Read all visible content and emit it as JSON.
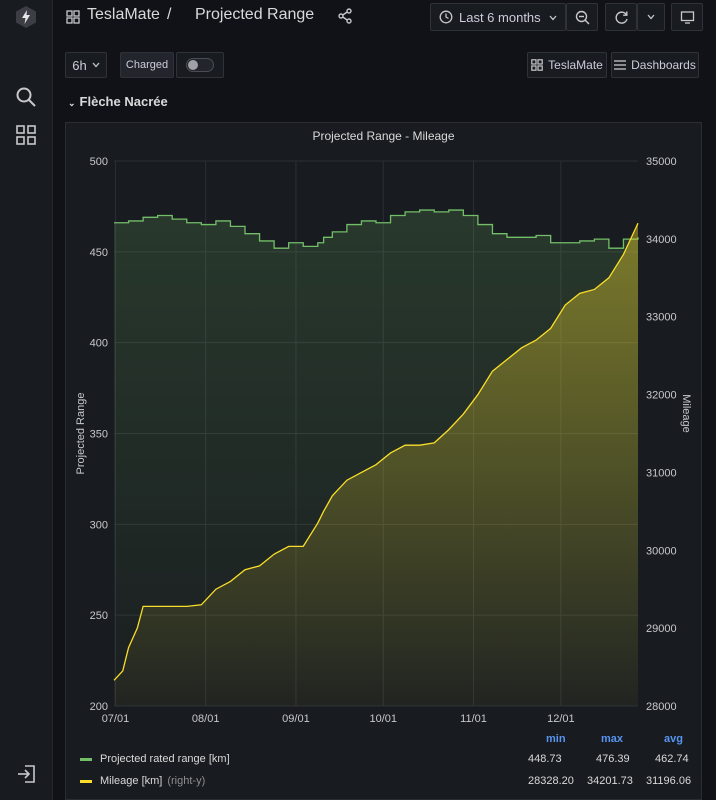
{
  "header": {
    "home": "TeslaMate",
    "separator": "/",
    "title": "Projected Range",
    "time_range": "Last 6 months"
  },
  "toolbar": {
    "interval": "6h",
    "charged_label": "Charged",
    "teslamate_link": "TeslaMate",
    "dashboards_link": "Dashboards"
  },
  "row": {
    "title": "Flèche Nacrée"
  },
  "panel": {
    "title": "Projected Range - Mileage"
  },
  "legend": {
    "col_min": "min",
    "col_max": "max",
    "col_avg": "avg",
    "items": [
      {
        "name": "Projected rated range [km]",
        "suffix": "",
        "min": "448.73",
        "max": "476.39",
        "avg": "462.74",
        "color": "#73bf69"
      },
      {
        "name": "Mileage [km]",
        "suffix": "(right-y)",
        "min": "28328.20",
        "max": "34201.73",
        "avg": "31196.06",
        "color": "#fade2a"
      }
    ]
  },
  "chart_data": {
    "type": "line",
    "title": "Projected Range - Mileage",
    "ylabel": "Projected Range",
    "y2label": "Mileage",
    "ylim": [
      200,
      500
    ],
    "y2lim": [
      28000,
      35000
    ],
    "yticks": [
      "200",
      "250",
      "300",
      "350",
      "400",
      "450",
      "500"
    ],
    "y2ticks": [
      "28000",
      "29000",
      "30000",
      "31000",
      "32000",
      "33000",
      "34000",
      "35000"
    ],
    "xticks": [
      "07/01",
      "08/01",
      "09/01",
      "10/01",
      "11/01",
      "12/01"
    ],
    "grid": true,
    "legend_position": "bottom",
    "series": [
      {
        "name": "Projected rated range [km]",
        "axis": "left",
        "color": "#73bf69",
        "x": [
          0,
          5,
          10,
          15,
          20,
          25,
          30,
          35,
          40,
          45,
          50,
          55,
          60,
          65,
          70,
          72,
          75,
          80,
          85,
          90,
          95,
          100,
          105,
          110,
          115,
          120,
          125,
          130,
          135,
          140,
          145,
          150,
          155,
          160,
          165,
          170,
          175,
          180
        ],
        "values": [
          466,
          467,
          469,
          470,
          468,
          466,
          465,
          467,
          464,
          460,
          456,
          452,
          455,
          453,
          455,
          458,
          461,
          465,
          467,
          466,
          470,
          472,
          473,
          472,
          473,
          470,
          465,
          460,
          458,
          458,
          459,
          455,
          455,
          456,
          457,
          452,
          457,
          458
        ]
      },
      {
        "name": "Mileage [km]",
        "axis": "right",
        "color": "#fade2a",
        "x": [
          0,
          3,
          5,
          8,
          10,
          13,
          18,
          25,
          30,
          35,
          40,
          45,
          50,
          55,
          60,
          65,
          70,
          72,
          75,
          80,
          85,
          90,
          95,
          100,
          105,
          110,
          115,
          120,
          125,
          130,
          135,
          140,
          145,
          150,
          155,
          160,
          165,
          170,
          175,
          180
        ],
        "values": [
          28330,
          28450,
          28750,
          29000,
          29280,
          29280,
          29280,
          29280,
          29300,
          29500,
          29600,
          29750,
          29800,
          29950,
          30050,
          30050,
          30350,
          30500,
          30700,
          30900,
          31000,
          31100,
          31250,
          31350,
          31350,
          31380,
          31550,
          31750,
          32000,
          32300,
          32450,
          32600,
          32700,
          32850,
          33150,
          33300,
          33350,
          33500,
          33800,
          34201
        ]
      }
    ]
  }
}
